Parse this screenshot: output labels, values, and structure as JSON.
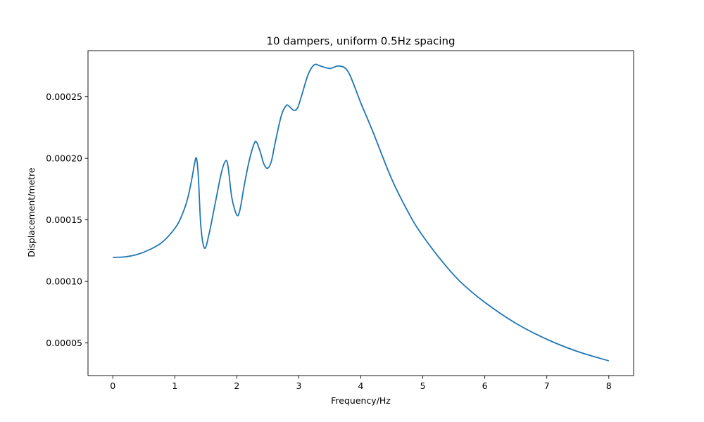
{
  "chart_data": {
    "type": "line",
    "title": "10 dampers, uniform 0.5Hz spacing",
    "xlabel": "Frequency/Hz",
    "ylabel": "Displacement/metre",
    "xlim": [
      -0.4,
      8.4
    ],
    "ylim": [
      2.35e-05,
      0.0002875
    ],
    "xticks": [
      0,
      1,
      2,
      3,
      4,
      5,
      6,
      7,
      8
    ],
    "xtick_labels": [
      "0",
      "1",
      "2",
      "3",
      "4",
      "5",
      "6",
      "7",
      "8"
    ],
    "yticks": [
      5e-05,
      0.0001,
      0.00015,
      0.0002,
      0.00025
    ],
    "ytick_labels": [
      "0.00005",
      "0.00010",
      "0.00015",
      "0.00020",
      "0.00025"
    ],
    "grid": false,
    "line_color": "#1f77b4",
    "series": [
      {
        "x": [
          0,
          0.2,
          0.4,
          0.6,
          0.8,
          1.0,
          1.1,
          1.2,
          1.27,
          1.32,
          1.35,
          1.38,
          1.42,
          1.48,
          1.55,
          1.65,
          1.75,
          1.82,
          1.86,
          1.92,
          2.0,
          2.05,
          2.12,
          2.2,
          2.28,
          2.32,
          2.38,
          2.44,
          2.5,
          2.56,
          2.62,
          2.72,
          2.8,
          2.85,
          2.92,
          2.98,
          3.04,
          3.15,
          3.25,
          3.35,
          3.5,
          3.65,
          3.8,
          4.0,
          4.2,
          4.5,
          4.8,
          5.0,
          5.3,
          5.6,
          6.0,
          6.5,
          7.0,
          7.5,
          8.0
        ],
        "y": [
          0.0001195,
          0.00012,
          0.000122,
          0.000126,
          0.000132,
          0.000143,
          0.000152,
          0.000166,
          0.000182,
          0.000196,
          0.0002,
          0.000185,
          0.000145,
          0.000127,
          0.000138,
          0.000163,
          0.000188,
          0.000198,
          0.000193,
          0.000168,
          0.000154,
          0.000158,
          0.000178,
          0.000198,
          0.000212,
          0.000213,
          0.000205,
          0.000195,
          0.000192,
          0.000198,
          0.000213,
          0.000235,
          0.000243,
          0.000242,
          0.000239,
          0.000241,
          0.00025,
          0.000268,
          0.000276,
          0.000275,
          0.000273,
          0.000275,
          0.00027,
          0.000245,
          0.000221,
          0.000183,
          0.000153,
          0.000137,
          0.000117,
          0.0001,
          8.3e-05,
          6.6e-05,
          5.3e-05,
          4.3e-05,
          3.55e-05
        ]
      }
    ]
  }
}
